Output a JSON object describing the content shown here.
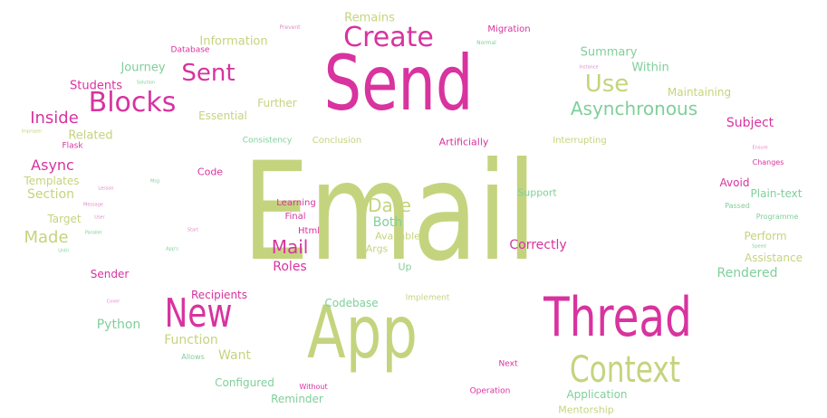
{
  "colors": {
    "green": "#c4d47e",
    "pink": "#d8339f",
    "teal": "#7fcf9a",
    "lightpink": "#e48ac8"
  },
  "words": [
    {
      "text": "Email",
      "color": "green"
    },
    {
      "text": "Send",
      "color": "pink"
    },
    {
      "text": "App",
      "color": "green"
    },
    {
      "text": "Thread",
      "color": "pink"
    },
    {
      "text": "Context",
      "color": "green"
    },
    {
      "text": "New",
      "color": "pink"
    },
    {
      "text": "Create",
      "color": "pink"
    },
    {
      "text": "Blocks",
      "color": "pink"
    },
    {
      "text": "Sent",
      "color": "pink"
    },
    {
      "text": "Use",
      "color": "green"
    },
    {
      "text": "Asynchronous",
      "color": "teal"
    },
    {
      "text": "Date",
      "color": "green"
    },
    {
      "text": "Mail",
      "color": "pink"
    },
    {
      "text": "Inside",
      "color": "pink"
    },
    {
      "text": "Async",
      "color": "pink"
    },
    {
      "text": "Made",
      "color": "green"
    },
    {
      "text": "Section",
      "color": "green"
    },
    {
      "text": "Roles",
      "color": "pink"
    },
    {
      "text": "Both",
      "color": "teal"
    },
    {
      "text": "Correctly",
      "color": "pink"
    },
    {
      "text": "Python",
      "color": "teal"
    },
    {
      "text": "Function",
      "color": "green"
    },
    {
      "text": "Want",
      "color": "green"
    },
    {
      "text": "Recipients",
      "color": "pink"
    },
    {
      "text": "Codebase",
      "color": "teal"
    },
    {
      "text": "Rendered",
      "color": "teal"
    },
    {
      "text": "Subject",
      "color": "pink"
    },
    {
      "text": "Remains",
      "color": "green"
    },
    {
      "text": "Information",
      "color": "green"
    },
    {
      "text": "Journey",
      "color": "teal"
    },
    {
      "text": "Students",
      "color": "pink"
    },
    {
      "text": "Summary",
      "color": "teal"
    },
    {
      "text": "Within",
      "color": "teal"
    },
    {
      "text": "Maintaining",
      "color": "green"
    },
    {
      "text": "Related",
      "color": "green"
    },
    {
      "text": "Further",
      "color": "green"
    },
    {
      "text": "Essential",
      "color": "green"
    },
    {
      "text": "Templates",
      "color": "green"
    },
    {
      "text": "Target",
      "color": "green"
    },
    {
      "text": "Sender",
      "color": "pink"
    },
    {
      "text": "Configured",
      "color": "teal"
    },
    {
      "text": "Reminder",
      "color": "teal"
    },
    {
      "text": "Application",
      "color": "teal"
    },
    {
      "text": "Mentorship",
      "color": "green"
    },
    {
      "text": "Perform",
      "color": "green"
    },
    {
      "text": "Assistance",
      "color": "green"
    },
    {
      "text": "Plain-text",
      "color": "teal"
    },
    {
      "text": "Avoid",
      "color": "pink"
    },
    {
      "text": "Support",
      "color": "teal"
    },
    {
      "text": "Available",
      "color": "green"
    },
    {
      "text": "Args",
      "color": "green"
    },
    {
      "text": "Up",
      "color": "teal"
    },
    {
      "text": "Html",
      "color": "pink"
    },
    {
      "text": "Final",
      "color": "pink"
    },
    {
      "text": "Learning",
      "color": "pink"
    },
    {
      "text": "Code",
      "color": "pink"
    },
    {
      "text": "Artificially",
      "color": "pink"
    },
    {
      "text": "Interrupting",
      "color": "green"
    },
    {
      "text": "Conclusion",
      "color": "green"
    },
    {
      "text": "Consistency",
      "color": "teal"
    },
    {
      "text": "Migration",
      "color": "pink"
    },
    {
      "text": "Database",
      "color": "pink"
    },
    {
      "text": "Implement",
      "color": "green"
    },
    {
      "text": "Next",
      "color": "pink"
    },
    {
      "text": "Operation",
      "color": "pink"
    },
    {
      "text": "Without",
      "color": "pink"
    },
    {
      "text": "Allows",
      "color": "teal"
    },
    {
      "text": "Flask",
      "color": "pink"
    },
    {
      "text": "Changes",
      "color": "pink"
    },
    {
      "text": "Passed",
      "color": "teal"
    },
    {
      "text": "Programme",
      "color": "teal"
    },
    {
      "text": "Prevent",
      "color": "lightpink"
    },
    {
      "text": "Normal",
      "color": "teal"
    },
    {
      "text": "Solution",
      "color": "teal"
    },
    {
      "text": "Lesson",
      "color": "lightpink"
    },
    {
      "text": "Message",
      "color": "lightpink"
    },
    {
      "text": "User",
      "color": "lightpink"
    },
    {
      "text": "Parallel",
      "color": "teal"
    },
    {
      "text": "Start",
      "color": "lightpink"
    },
    {
      "text": "Msg",
      "color": "teal"
    },
    {
      "text": "App's",
      "color": "teal"
    },
    {
      "text": "Speed",
      "color": "teal"
    },
    {
      "text": "Ensure",
      "color": "lightpink"
    },
    {
      "text": "Cover",
      "color": "lightpink"
    },
    {
      "text": "Instance",
      "color": "lightpink"
    },
    {
      "text": "Improper",
      "color": "green"
    },
    {
      "text": "Until",
      "color": "teal"
    }
  ]
}
